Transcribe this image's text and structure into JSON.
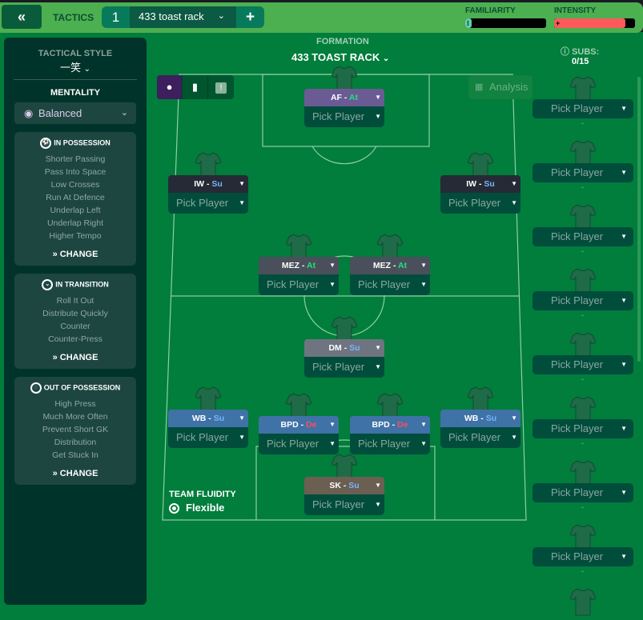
{
  "header": {
    "back_label": "«",
    "section": "TACTICS",
    "tab_number": "1",
    "tab_name": "433 toast rack",
    "add_label": "+",
    "familiarity_label": "FAMILIARITY",
    "familiarity_value": 0.08,
    "intensity_label": "INTENSITY",
    "intensity_value": 0.88,
    "familiarity_color": "#5fd0a8",
    "intensity_color": "#ff5a5a"
  },
  "sidebar": {
    "style_title": "TACTICAL STYLE",
    "style_value": "一笑",
    "mentality_title": "MENTALITY",
    "mentality_value": "Balanced",
    "sections": [
      {
        "title": "IN POSSESSION",
        "items": [
          "Shorter Passing",
          "Pass Into Space",
          "Low Crosses",
          "Run At Defence",
          "Underlap Left",
          "Underlap Right",
          "Higher Tempo"
        ],
        "change": "CHANGE"
      },
      {
        "title": "IN TRANSITION",
        "items": [
          "Roll It Out",
          "Distribute Quickly",
          "Counter",
          "Counter-Press"
        ],
        "change": "CHANGE"
      },
      {
        "title": "OUT OF POSSESSION",
        "items": [
          "High Press",
          "Much More Often",
          "Prevent Short GK",
          "Distribution",
          "Get Stuck In"
        ],
        "change": "CHANGE"
      }
    ]
  },
  "formation": {
    "label": "FORMATION",
    "name": "433 TOAST RACK",
    "analysis": "Analysis"
  },
  "positions": [
    {
      "role": "AF",
      "duty": "At",
      "color": "#6b5b95",
      "pick": "Pick Player"
    },
    {
      "role": "IW",
      "duty": "Su",
      "color": "#262a36",
      "pick": "Pick Player"
    },
    {
      "role": "IW",
      "duty": "Su",
      "color": "#262a36",
      "pick": "Pick Player"
    },
    {
      "role": "MEZ",
      "duty": "At",
      "color": "#4a505b",
      "pick": "Pick Player"
    },
    {
      "role": "MEZ",
      "duty": "At",
      "color": "#4a505b",
      "pick": "Pick Player"
    },
    {
      "role": "DM",
      "duty": "Su",
      "color": "#6e7580",
      "pick": "Pick Player"
    },
    {
      "role": "WB",
      "duty": "Su",
      "color": "#3f72a6",
      "pick": "Pick Player"
    },
    {
      "role": "WB",
      "duty": "Su",
      "color": "#3f72a6",
      "pick": "Pick Player"
    },
    {
      "role": "BPD",
      "duty": "De",
      "color": "#3f72a6",
      "pick": "Pick Player"
    },
    {
      "role": "BPD",
      "duty": "De",
      "color": "#3f72a6",
      "pick": "Pick Player"
    },
    {
      "role": "SK",
      "duty": "Su",
      "color": "#6b5f52",
      "pick": "Pick Player"
    }
  ],
  "duty_colors": {
    "At": "#22e07a",
    "Su": "#7ab3ff",
    "De": "#ff4d5a"
  },
  "fluidity": {
    "label": "TEAM FLUIDITY",
    "value": "Flexible"
  },
  "subs": {
    "label": "SUBS:",
    "count": "0/15",
    "items": [
      "Pick Player",
      "Pick Player",
      "Pick Player",
      "Pick Player",
      "Pick Player",
      "Pick Player",
      "Pick Player",
      "Pick Player"
    ],
    "empty": "-"
  }
}
